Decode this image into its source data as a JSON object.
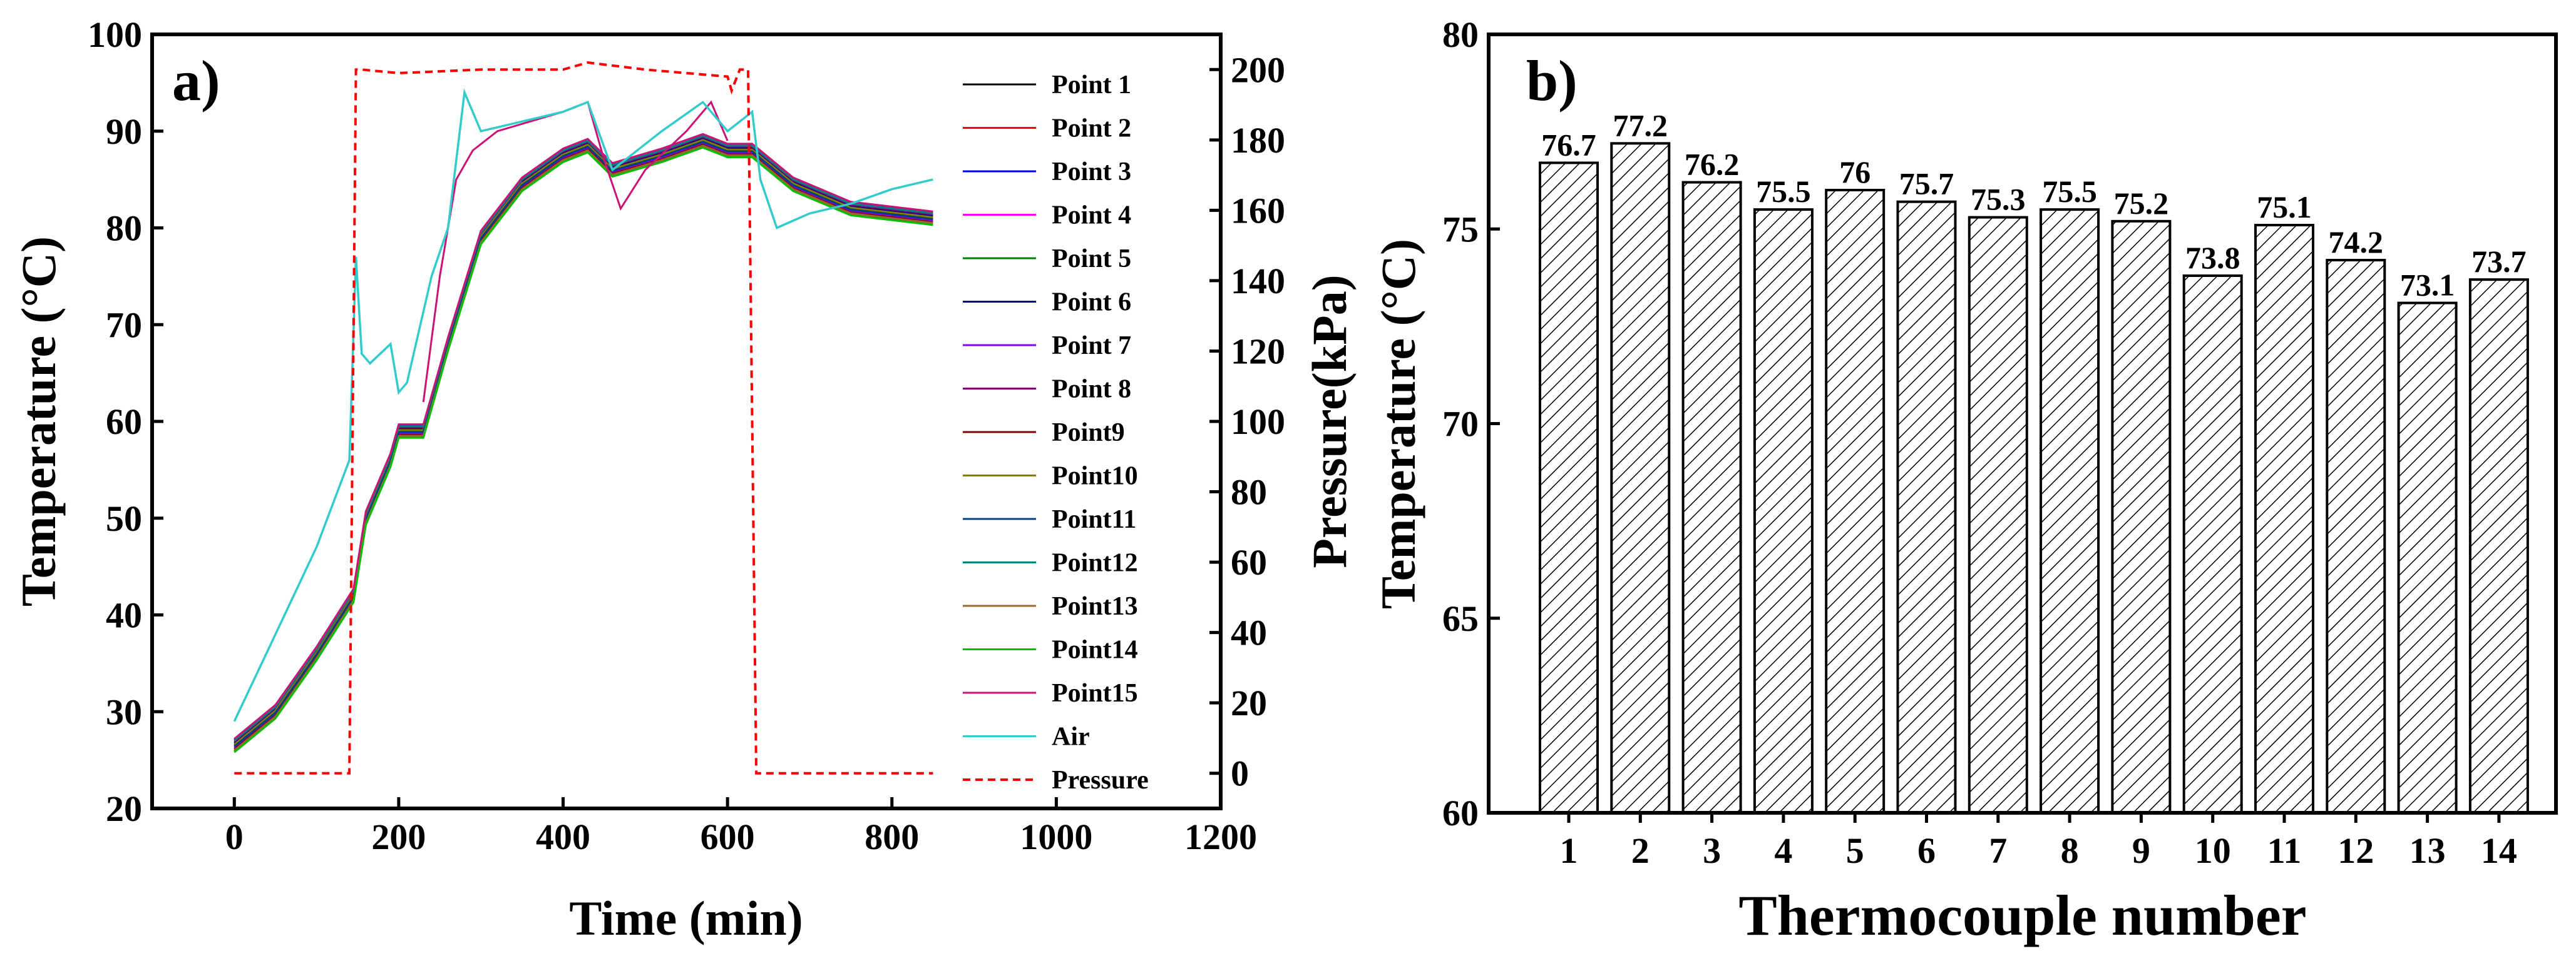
{
  "chart_data": [
    {
      "type": "line",
      "panel_label": "a)",
      "xlabel": "Time (min)",
      "ylabel": "Temperature (°C)",
      "y2label": "Pressure(kPa)",
      "xlim": [
        -100,
        1200
      ],
      "ylim": [
        20,
        100
      ],
      "y2lim": [
        -10,
        210
      ],
      "xticks": [
        0,
        200,
        400,
        600,
        800,
        1000,
        1200
      ],
      "yticks": [
        20,
        30,
        40,
        50,
        60,
        70,
        80,
        90,
        100
      ],
      "y2ticks": [
        0,
        20,
        40,
        60,
        80,
        100,
        120,
        140,
        160,
        180,
        200
      ],
      "legend_position": "right",
      "point_base": {
        "x": [
          0,
          50,
          100,
          145,
          160,
          190,
          200,
          230,
          260,
          300,
          350,
          400,
          430,
          460,
          520,
          570,
          600,
          630,
          680,
          750,
          850
        ],
        "y": [
          26.5,
          30,
          36,
          42,
          50,
          56,
          59,
          59,
          68,
          79,
          84.5,
          87.5,
          88.5,
          86,
          87.5,
          89,
          88,
          88,
          84.5,
          82,
          81
        ]
      },
      "series": [
        {
          "name": "Point 1",
          "color": "#000000",
          "offset": 0.0
        },
        {
          "name": "Point 2",
          "color": "#ff0000",
          "offset": 0.3
        },
        {
          "name": "Point 3",
          "color": "#0000ff",
          "offset": 0.6
        },
        {
          "name": "Point 4",
          "color": "#ff00ff",
          "offset": -0.3
        },
        {
          "name": "Point 5",
          "color": "#008000",
          "offset": -0.6
        },
        {
          "name": "Point 6",
          "color": "#000080",
          "offset": 0.2
        },
        {
          "name": "Point 7",
          "color": "#8000ff",
          "offset": -0.2
        },
        {
          "name": "Point 8",
          "color": "#800080",
          "offset": 0.4
        },
        {
          "name": "Point9",
          "color": "#800000",
          "offset": -0.4
        },
        {
          "name": "Point10",
          "color": "#808000",
          "offset": 0.1
        },
        {
          "name": "Point11",
          "color": "#004080",
          "offset": -0.1
        },
        {
          "name": "Point12",
          "color": "#008080",
          "offset": 0.5
        },
        {
          "name": "Point13",
          "color": "#996633",
          "offset": -0.5
        },
        {
          "name": "Point14",
          "color": "#00c000",
          "offset": -0.7
        },
        {
          "name": "Point15",
          "color": "#cc1177",
          "offset": 0.7
        }
      ],
      "air": {
        "name": "Air",
        "color": "#33cccc",
        "x": [
          0,
          50,
          100,
          140,
          148,
          155,
          165,
          190,
          200,
          210,
          240,
          260,
          280,
          300,
          350,
          400,
          430,
          460,
          520,
          570,
          600,
          630,
          640,
          660,
          700,
          750,
          800,
          850
        ],
        "y": [
          29,
          38,
          47,
          56,
          77,
          67,
          66,
          68,
          63,
          64,
          75,
          80,
          94,
          90,
          91,
          92,
          93,
          86,
          90,
          93,
          90,
          92,
          85,
          80,
          81.5,
          82.5,
          84,
          85
        ]
      },
      "point15_excursion": {
        "x": [
          230,
          250,
          270,
          290,
          320,
          360,
          400,
          430,
          450,
          470,
          500,
          550,
          580,
          600
        ],
        "y": [
          62,
          75,
          85,
          88,
          90,
          91,
          92,
          93,
          87,
          82,
          86,
          90,
          93,
          89
        ]
      },
      "pressure": {
        "name": "Pressure",
        "color": "#ff0000",
        "x": [
          0,
          140,
          148,
          155,
          200,
          300,
          400,
          430,
          500,
          600,
          605,
          615,
          625,
          635,
          645,
          850
        ],
        "y": [
          0,
          0,
          200,
          200,
          199,
          200,
          200,
          202,
          200,
          198,
          194,
          200,
          200,
          0,
          0,
          0
        ]
      }
    },
    {
      "type": "bar",
      "panel_label": "b)",
      "xlabel": "Thermocouple number",
      "ylabel": "Temperature (°C)",
      "ylim": [
        60,
        80
      ],
      "yticks": [
        60,
        65,
        70,
        75,
        80
      ],
      "categories": [
        "1",
        "2",
        "3",
        "4",
        "5",
        "6",
        "7",
        "8",
        "9",
        "10",
        "11",
        "12",
        "13",
        "14"
      ],
      "values": [
        76.7,
        77.2,
        76.2,
        75.5,
        76.0,
        75.7,
        75.3,
        75.5,
        75.2,
        73.8,
        75.1,
        74.2,
        73.1,
        73.7
      ],
      "data_labels": [
        "76.7",
        "77.2",
        "76.2",
        "75.5",
        "76",
        "75.7",
        "75.3",
        "75.5",
        "75.2",
        "73.8",
        "75.1",
        "74.2",
        "73.1",
        "73.7"
      ],
      "pattern": "diagonal-hatch"
    }
  ]
}
